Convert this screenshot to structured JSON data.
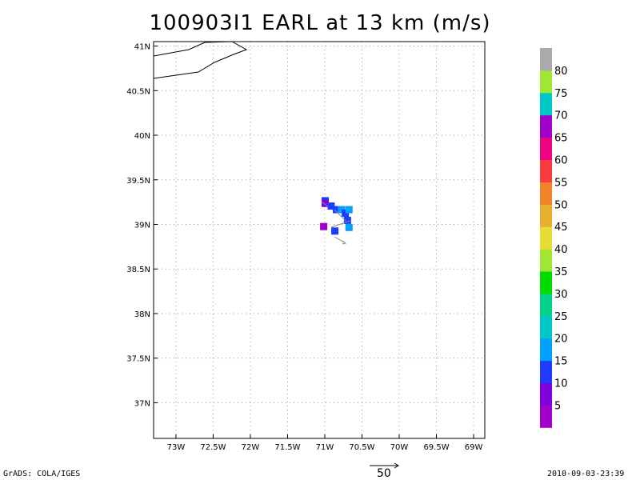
{
  "title": "100903I1 EARL at 13 km (m/s)",
  "footer": {
    "credit": "GrADS: COLA/IGES",
    "timestamp": "2010-09-03-23:39",
    "reference_vector_label": "50"
  },
  "map": {
    "lon_range": [
      -73.3,
      -68.85
    ],
    "lat_range": [
      36.6,
      41.05
    ],
    "lon_ticks": [
      "73W",
      "72.5W",
      "72W",
      "71.5W",
      "71W",
      "70.5W",
      "70W",
      "69.5W",
      "69W"
    ],
    "lat_ticks": [
      "41N",
      "40.5N",
      "40N",
      "39.5N",
      "39N",
      "38.5N",
      "38N",
      "37.5N",
      "37N"
    ],
    "grid": "dotted"
  },
  "colorbar": {
    "labels": [
      "5",
      "10",
      "15",
      "20",
      "25",
      "30",
      "35",
      "40",
      "45",
      "50",
      "55",
      "60",
      "65",
      "70",
      "75",
      "80"
    ],
    "colors": [
      "#a000c8",
      "#8200dc",
      "#1e3cff",
      "#00a0ff",
      "#00c8c8",
      "#00d28c",
      "#00dc00",
      "#a0e632",
      "#e6dc32",
      "#e6af2d",
      "#f08228",
      "#fa3c3c",
      "#f00082",
      "#a000c8",
      "#00c8c8",
      "#a0e632",
      "#aaaaaa"
    ]
  },
  "wind_cells": [
    {
      "lon": -71.0,
      "lat": 39.27,
      "color": "#1e3cff"
    },
    {
      "lon": -71.0,
      "lat": 39.24,
      "color": "#8200dc"
    },
    {
      "lon": -70.92,
      "lat": 39.21,
      "color": "#1e3cff"
    },
    {
      "lon": -70.85,
      "lat": 39.17,
      "color": "#1e3cff"
    },
    {
      "lon": -70.78,
      "lat": 39.17,
      "color": "#00a0ff"
    },
    {
      "lon": -70.73,
      "lat": 39.13,
      "color": "#1e3cff"
    },
    {
      "lon": -70.68,
      "lat": 39.17,
      "color": "#00a0ff"
    },
    {
      "lon": -70.7,
      "lat": 39.05,
      "color": "#1e3cff"
    },
    {
      "lon": -70.68,
      "lat": 38.97,
      "color": "#00a0ff"
    },
    {
      "lon": -71.02,
      "lat": 38.98,
      "color": "#a000c8"
    },
    {
      "lon": -70.87,
      "lat": 38.93,
      "color": "#1e3cff"
    }
  ]
}
